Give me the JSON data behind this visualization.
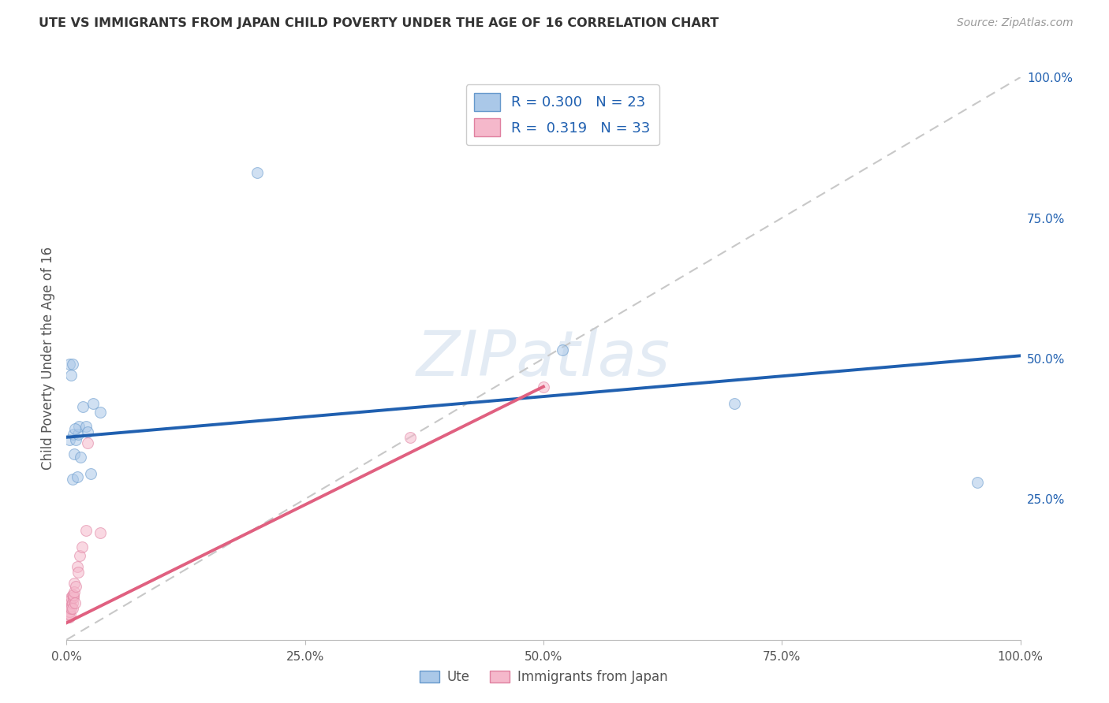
{
  "title": "UTE VS IMMIGRANTS FROM JAPAN CHILD POVERTY UNDER THE AGE OF 16 CORRELATION CHART",
  "source": "Source: ZipAtlas.com",
  "ylabel": "Child Poverty Under the Age of 16",
  "watermark": "ZIPatlas",
  "legend_line1": "R = 0.300   N = 23",
  "legend_line2": "R =  0.319   N = 33",
  "ute_color": "#aac8e8",
  "japan_color": "#f5b8cb",
  "ute_edge_color": "#6699cc",
  "japan_edge_color": "#e080a0",
  "ute_line_color": "#2060b0",
  "japan_line_color": "#e06080",
  "diagonal_color": "#c8c8c8",
  "ute_x": [
    0.003,
    0.005,
    0.006,
    0.007,
    0.008,
    0.01,
    0.011,
    0.012,
    0.013,
    0.015,
    0.017,
    0.02,
    0.022,
    0.025,
    0.028,
    0.035,
    0.2,
    0.52,
    0.7,
    0.955,
    0.003,
    0.006,
    0.009
  ],
  "ute_y": [
    0.355,
    0.47,
    0.285,
    0.365,
    0.33,
    0.355,
    0.29,
    0.365,
    0.38,
    0.325,
    0.415,
    0.38,
    0.37,
    0.295,
    0.42,
    0.405,
    0.83,
    0.515,
    0.42,
    0.28,
    0.49,
    0.49,
    0.375
  ],
  "japan_x": [
    0.001,
    0.001,
    0.002,
    0.002,
    0.002,
    0.003,
    0.003,
    0.003,
    0.003,
    0.004,
    0.004,
    0.004,
    0.005,
    0.005,
    0.005,
    0.006,
    0.006,
    0.006,
    0.007,
    0.007,
    0.008,
    0.008,
    0.009,
    0.01,
    0.011,
    0.012,
    0.014,
    0.016,
    0.02,
    0.022,
    0.035,
    0.36,
    0.5
  ],
  "japan_y": [
    0.05,
    0.04,
    0.06,
    0.045,
    0.055,
    0.04,
    0.06,
    0.07,
    0.05,
    0.065,
    0.045,
    0.07,
    0.06,
    0.075,
    0.055,
    0.065,
    0.08,
    0.055,
    0.075,
    0.08,
    0.1,
    0.085,
    0.065,
    0.095,
    0.13,
    0.12,
    0.15,
    0.165,
    0.195,
    0.35,
    0.19,
    0.36,
    0.45
  ],
  "ute_line_x0": 0.0,
  "ute_line_y0": 0.36,
  "ute_line_x1": 1.0,
  "ute_line_y1": 0.505,
  "japan_line_x0": 0.0,
  "japan_line_y0": 0.03,
  "japan_line_x1": 0.5,
  "japan_line_y1": 0.45,
  "xlim": [
    0.0,
    1.0
  ],
  "ylim": [
    0.0,
    1.0
  ],
  "xticks": [
    0.0,
    0.25,
    0.5,
    0.75,
    1.0
  ],
  "xtick_labels": [
    "0.0%",
    "25.0%",
    "50.0%",
    "75.0%",
    "100.0%"
  ],
  "yticks_right": [
    0.25,
    0.5,
    0.75,
    1.0
  ],
  "ytick_labels_right": [
    "25.0%",
    "50.0%",
    "75.0%",
    "100.0%"
  ],
  "bg_color": "#ffffff",
  "grid_color": "#d8d8d8",
  "title_color": "#333333",
  "label_color": "#555555",
  "marker_size": 100,
  "marker_alpha": 0.55,
  "ute_label": "Ute",
  "japan_label": "Immigrants from Japan"
}
